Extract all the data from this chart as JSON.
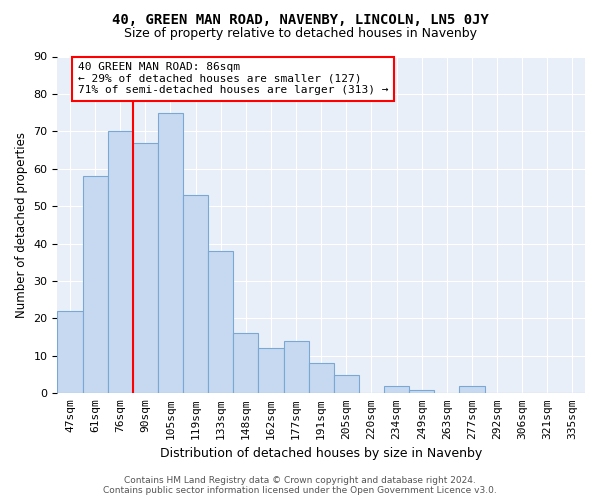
{
  "title": "40, GREEN MAN ROAD, NAVENBY, LINCOLN, LN5 0JY",
  "subtitle": "Size of property relative to detached houses in Navenby",
  "xlabel": "Distribution of detached houses by size in Navenby",
  "ylabel": "Number of detached properties",
  "bar_labels": [
    "47sqm",
    "61sqm",
    "76sqm",
    "90sqm",
    "105sqm",
    "119sqm",
    "133sqm",
    "148sqm",
    "162sqm",
    "177sqm",
    "191sqm",
    "205sqm",
    "220sqm",
    "234sqm",
    "249sqm",
    "263sqm",
    "277sqm",
    "292sqm",
    "306sqm",
    "321sqm",
    "335sqm"
  ],
  "bar_values": [
    22,
    58,
    70,
    67,
    75,
    53,
    38,
    16,
    12,
    14,
    8,
    5,
    0,
    2,
    1,
    0,
    2,
    0,
    0,
    0,
    0
  ],
  "bar_color": "#c6d9f1",
  "bar_edge_color": "#7ba7d4",
  "red_line_index": 2.5,
  "annotation_line1": "40 GREEN MAN ROAD: 86sqm",
  "annotation_line2": "← 29% of detached houses are smaller (127)",
  "annotation_line3": "71% of semi-detached houses are larger (313) →",
  "footer_line1": "Contains HM Land Registry data © Crown copyright and database right 2024.",
  "footer_line2": "Contains public sector information licensed under the Open Government Licence v3.0.",
  "bg_color": "#e8eff8",
  "ylim": [
    0,
    90
  ],
  "yticks": [
    0,
    10,
    20,
    30,
    40,
    50,
    60,
    70,
    80,
    90
  ],
  "title_fontsize": 10,
  "subtitle_fontsize": 9,
  "axis_tick_fontsize": 8,
  "ylabel_fontsize": 8.5,
  "xlabel_fontsize": 9,
  "annotation_fontsize": 8,
  "footer_fontsize": 6.5
}
